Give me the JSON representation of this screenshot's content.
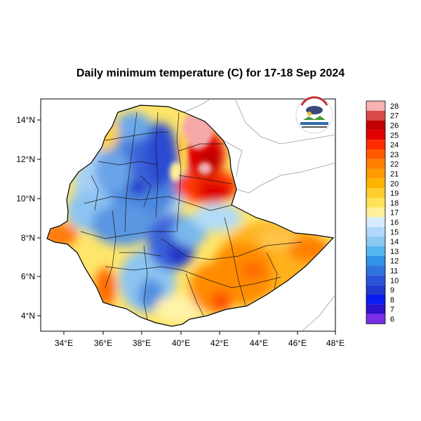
{
  "map": {
    "title": "Daily minimum temperature (C) for 17-18 Sep 2024",
    "lon_ticks": [
      "34°E",
      "36°E",
      "38°E",
      "40°E",
      "42°E",
      "44°E",
      "46°E",
      "48°E"
    ],
    "lat_ticks": [
      "14°N",
      "12°N",
      "10°N",
      "8°N",
      "6°N",
      "4°N"
    ],
    "logo_alt": "Ethiopian Meteorology Institute"
  },
  "colorbar": {
    "labels": [
      "28",
      "27",
      "26",
      "25",
      "24",
      "23",
      "22",
      "21",
      "20",
      "19",
      "18",
      "17",
      "16",
      "15",
      "14",
      "13",
      "12",
      "11",
      "10",
      "9",
      "8",
      "7",
      "6"
    ],
    "colors": [
      "#f7b2b2",
      "#d94a4a",
      "#c20000",
      "#e00000",
      "#ff2b00",
      "#ff5a00",
      "#ff7f00",
      "#ff9a00",
      "#ffb400",
      "#ffcd2e",
      "#ffe255",
      "#fff19a",
      "#d6ebff",
      "#b0d8f8",
      "#8bc8f2",
      "#55b7f0",
      "#2f93e6",
      "#2f73dc",
      "#2a55d8",
      "#213ad0",
      "#0a1bf0",
      "#2e12c8",
      "#7a2ee8"
    ]
  }
}
